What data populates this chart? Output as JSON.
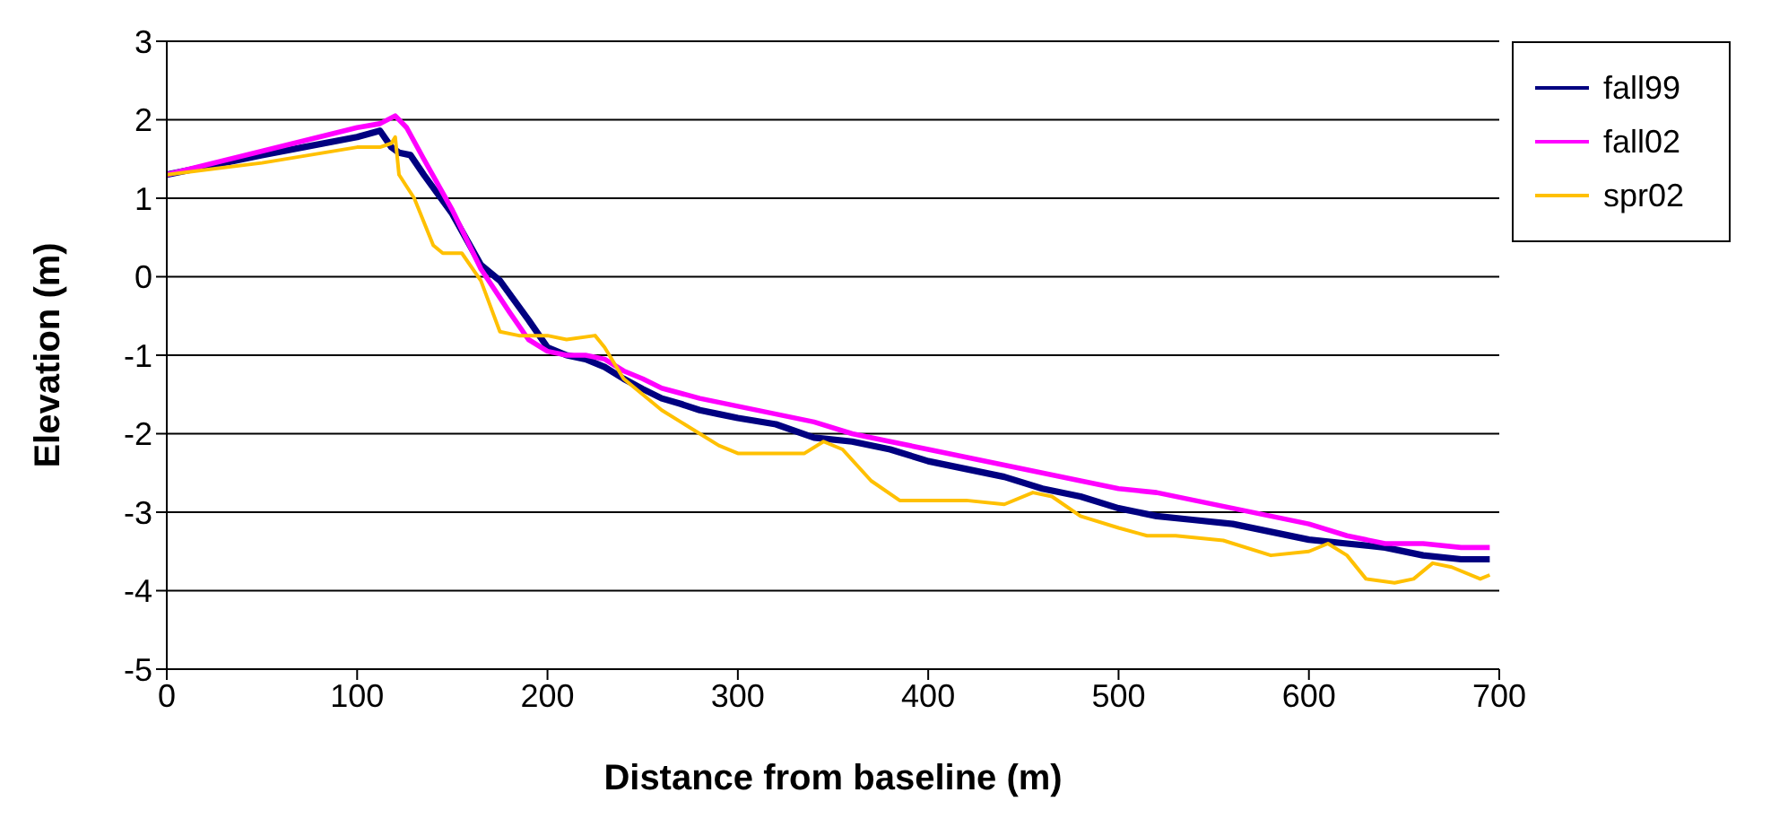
{
  "chart_data": {
    "type": "line",
    "xlabel": "Distance from baseline (m)",
    "ylabel": "Elevation (m)",
    "xlim": [
      0,
      700
    ],
    "xticks": [
      0,
      100,
      200,
      300,
      400,
      500,
      600,
      700
    ],
    "ylim": [
      -5,
      3
    ],
    "yticks": [
      -5,
      -4,
      -3,
      -2,
      -1,
      0,
      1,
      2,
      3
    ],
    "grid": "y",
    "legend": "top right",
    "marker": "none",
    "line_style": "solid",
    "series": [
      {
        "name": "fall99",
        "color": "#000080",
        "x": [
          0,
          50,
          100,
          112,
          118,
          122,
          128,
          135,
          150,
          165,
          175,
          190,
          200,
          210,
          220,
          230,
          240,
          250,
          260,
          270,
          280,
          290,
          300,
          320,
          340,
          360,
          380,
          400,
          420,
          440,
          460,
          480,
          500,
          520,
          540,
          560,
          580,
          600,
          620,
          640,
          660,
          680,
          695
        ],
        "values": [
          1.3,
          1.55,
          1.78,
          1.86,
          1.65,
          1.58,
          1.55,
          1.3,
          0.8,
          0.15,
          -0.05,
          -0.55,
          -0.9,
          -1.0,
          -1.05,
          -1.15,
          -1.3,
          -1.43,
          -1.55,
          -1.62,
          -1.7,
          -1.75,
          -1.8,
          -1.88,
          -2.05,
          -2.1,
          -2.2,
          -2.35,
          -2.45,
          -2.55,
          -2.7,
          -2.8,
          -2.95,
          -3.05,
          -3.1,
          -3.15,
          -3.25,
          -3.35,
          -3.4,
          -3.45,
          -3.55,
          -3.6,
          -3.6
        ]
      },
      {
        "name": "fall02",
        "color": "#ff00ff",
        "x": [
          0,
          50,
          100,
          112,
          120,
          126,
          135,
          150,
          165,
          180,
          190,
          200,
          210,
          220,
          230,
          240,
          250,
          260,
          280,
          300,
          320,
          340,
          360,
          380,
          400,
          420,
          440,
          460,
          480,
          500,
          520,
          540,
          560,
          580,
          600,
          620,
          640,
          660,
          680,
          695
        ],
        "values": [
          1.3,
          1.6,
          1.9,
          1.95,
          2.05,
          1.9,
          1.5,
          0.85,
          0.1,
          -0.45,
          -0.8,
          -0.95,
          -1.0,
          -1.0,
          -1.05,
          -1.2,
          -1.3,
          -1.42,
          -1.55,
          -1.65,
          -1.75,
          -1.85,
          -2.0,
          -2.1,
          -2.2,
          -2.3,
          -2.4,
          -2.5,
          -2.6,
          -2.7,
          -2.75,
          -2.85,
          -2.95,
          -3.05,
          -3.15,
          -3.3,
          -3.4,
          -3.4,
          -3.45,
          -3.45
        ]
      },
      {
        "name": "spr02",
        "color": "#ffc000",
        "x": [
          0,
          50,
          100,
          112,
          118,
          120,
          122,
          130,
          140,
          145,
          155,
          165,
          175,
          185,
          200,
          210,
          225,
          230,
          240,
          250,
          260,
          270,
          280,
          290,
          300,
          320,
          335,
          345,
          355,
          370,
          385,
          400,
          420,
          440,
          455,
          465,
          480,
          500,
          515,
          530,
          555,
          580,
          600,
          610,
          620,
          630,
          645,
          655,
          665,
          675,
          690,
          695
        ],
        "values": [
          1.3,
          1.45,
          1.65,
          1.65,
          1.7,
          1.78,
          1.3,
          1.0,
          0.4,
          0.3,
          0.3,
          -0.05,
          -0.7,
          -0.75,
          -0.75,
          -0.8,
          -0.75,
          -0.9,
          -1.3,
          -1.5,
          -1.7,
          -1.85,
          -2.0,
          -2.15,
          -2.25,
          -2.25,
          -2.25,
          -2.1,
          -2.2,
          -2.6,
          -2.85,
          -2.85,
          -2.85,
          -2.9,
          -2.75,
          -2.8,
          -3.05,
          -3.2,
          -3.3,
          -3.3,
          -3.36,
          -3.55,
          -3.5,
          -3.4,
          -3.55,
          -3.85,
          -3.9,
          -3.85,
          -3.65,
          -3.7,
          -3.85,
          -3.8
        ]
      }
    ]
  }
}
